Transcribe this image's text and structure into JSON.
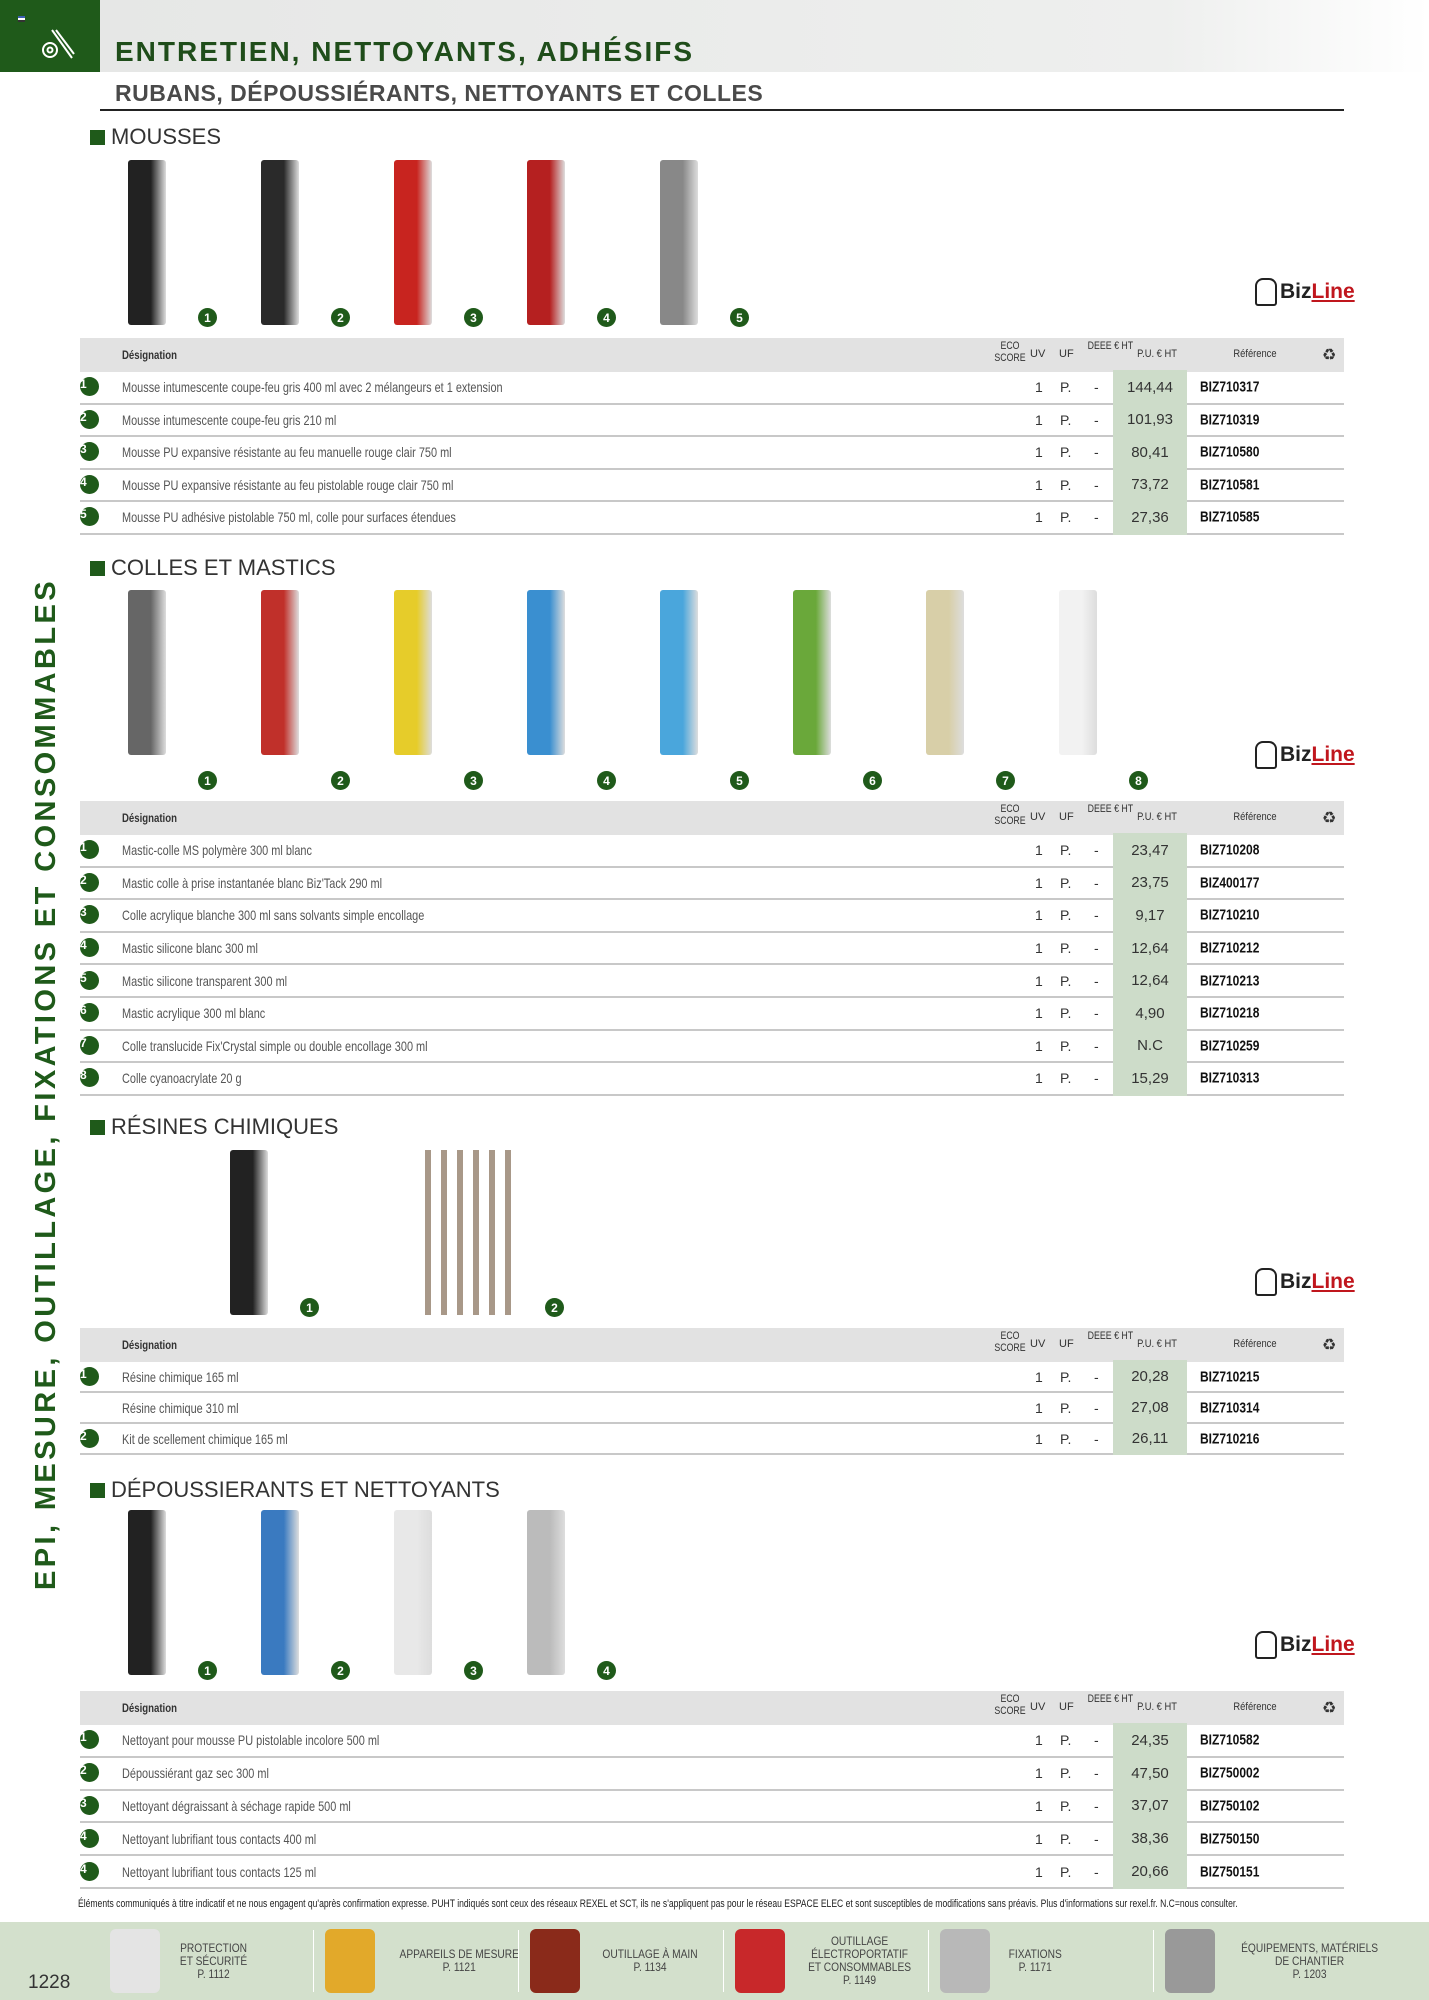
{
  "header": {
    "title": "ENTRETIEN, NETTOYANTS, ADHÉSIFS",
    "subtitle": "RUBANS, DÉPOUSSIÉRANTS, NETTOYANTS ET COLLES",
    "side_label": "EPI, MESURE, OUTILLAGE, FIXATIONS ET CONSOMMABLES",
    "icon": "tool-icon"
  },
  "colors": {
    "brand_green": "#1f5a1a",
    "price_bg": "#cddcc9",
    "header_bg": "#e2e2e2",
    "footer_bg": "#d3e0cc",
    "bizline_red": "#c0161d"
  },
  "brand": {
    "biz": "Biz",
    "line": "Line"
  },
  "table_header": {
    "designation": "Désignation",
    "eco": "ECO SCORE",
    "uv": "UV",
    "uf": "UF",
    "deee": "DEEE € HT",
    "pu": "P.U. € HT",
    "ref": "Référence",
    "recycle_icon": "recycle-icon"
  },
  "sections": [
    {
      "title": "MOUSSES",
      "product_colors": [
        "#222",
        "#2a2a2a",
        "#c8241f",
        "#b52020",
        "#888"
      ],
      "rows": [
        {
          "n": "1",
          "des": "Mousse intumescente coupe-feu gris 400 ml avec 2 mélangeurs et 1 extension",
          "uv": "1",
          "uf": "P.",
          "deee": "-",
          "pu": "144,44",
          "ref": "BIZ710317"
        },
        {
          "n": "2",
          "des": "Mousse intumescente coupe-feu gris 210 ml",
          "uv": "1",
          "uf": "P.",
          "deee": "-",
          "pu": "101,93",
          "ref": "BIZ710319"
        },
        {
          "n": "3",
          "des": "Mousse PU expansive résistante au feu manuelle rouge clair 750 ml",
          "uv": "1",
          "uf": "P.",
          "deee": "-",
          "pu": "80,41",
          "ref": "BIZ710580"
        },
        {
          "n": "4",
          "des": "Mousse PU expansive résistante au feu pistolable rouge clair 750 ml",
          "uv": "1",
          "uf": "P.",
          "deee": "-",
          "pu": "73,72",
          "ref": "BIZ710581"
        },
        {
          "n": "5",
          "des": "Mousse PU adhésive pistolable 750 ml, colle pour surfaces étendues",
          "uv": "1",
          "uf": "P.",
          "deee": "-",
          "pu": "27,36",
          "ref": "BIZ710585"
        }
      ]
    },
    {
      "title": "COLLES ET MASTICS",
      "product_colors": [
        "#666",
        "#c0302a",
        "#e6cc2a",
        "#3a8fd0",
        "#4aa6dc",
        "#6aa83a",
        "#d8cfa8",
        "#f2f2f2"
      ],
      "rows": [
        {
          "n": "1",
          "des": "Mastic-colle MS polymère 300 ml blanc",
          "uv": "1",
          "uf": "P.",
          "deee": "-",
          "pu": "23,47",
          "ref": "BIZ710208"
        },
        {
          "n": "2",
          "des": "Mastic colle à prise instantanée blanc Biz'Tack 290 ml",
          "uv": "1",
          "uf": "P.",
          "deee": "-",
          "pu": "23,75",
          "ref": "BIZ400177"
        },
        {
          "n": "3",
          "des": "Colle acrylique blanche 300 ml sans solvants simple encollage",
          "uv": "1",
          "uf": "P.",
          "deee": "-",
          "pu": "9,17",
          "ref": "BIZ710210"
        },
        {
          "n": "4",
          "des": "Mastic silicone blanc 300 ml",
          "uv": "1",
          "uf": "P.",
          "deee": "-",
          "pu": "12,64",
          "ref": "BIZ710212"
        },
        {
          "n": "5",
          "des": "Mastic silicone transparent 300 ml",
          "uv": "1",
          "uf": "P.",
          "deee": "-",
          "pu": "12,64",
          "ref": "BIZ710213"
        },
        {
          "n": "6",
          "des": "Mastic acrylique 300 ml blanc",
          "uv": "1",
          "uf": "P.",
          "deee": "-",
          "pu": "4,90",
          "ref": "BIZ710218"
        },
        {
          "n": "7",
          "des": "Colle translucide Fix'Crystal simple ou double encollage 300 ml",
          "uv": "1",
          "uf": "P.",
          "deee": "-",
          "pu": "N.C",
          "ref": "BIZ710259"
        },
        {
          "n": "8",
          "des": "Colle cyanoacrylate 20 g",
          "uv": "1",
          "uf": "P.",
          "deee": "-",
          "pu": "15,29",
          "ref": "BIZ710313"
        }
      ]
    },
    {
      "title": "RÉSINES CHIMIQUES",
      "product_colors": [
        "#222",
        "#a89888"
      ],
      "rows": [
        {
          "n": "1",
          "des": "Résine chimique 165 ml",
          "uv": "1",
          "uf": "P.",
          "deee": "-",
          "pu": "20,28",
          "ref": "BIZ710215"
        },
        {
          "n": "",
          "des": "Résine chimique 310 ml",
          "uv": "1",
          "uf": "P.",
          "deee": "-",
          "pu": "27,08",
          "ref": "BIZ710314"
        },
        {
          "n": "2",
          "des": "Kit de scellement chimique 165 ml",
          "uv": "1",
          "uf": "P.",
          "deee": "-",
          "pu": "26,11",
          "ref": "BIZ710216"
        }
      ]
    },
    {
      "title": "DÉPOUSSIERANTS ET NETTOYANTS",
      "product_colors": [
        "#222",
        "#3a7ac0",
        "#e8e8e8",
        "#bbb"
      ],
      "rows": [
        {
          "n": "1",
          "des": "Nettoyant pour mousse PU pistolable incolore 500 ml",
          "uv": "1",
          "uf": "P.",
          "deee": "-",
          "pu": "24,35",
          "ref": "BIZ710582"
        },
        {
          "n": "2",
          "des": "Dépoussiérant gaz sec 300 ml",
          "uv": "1",
          "uf": "P.",
          "deee": "-",
          "pu": "47,50",
          "ref": "BIZ750002"
        },
        {
          "n": "3",
          "des": "Nettoyant dégraissant à séchage rapide 500 ml",
          "uv": "1",
          "uf": "P.",
          "deee": "-",
          "pu": "37,07",
          "ref": "BIZ750102"
        },
        {
          "n": "4",
          "des": "Nettoyant lubrifiant tous contacts 400 ml",
          "uv": "1",
          "uf": "P.",
          "deee": "-",
          "pu": "38,36",
          "ref": "BIZ750150"
        },
        {
          "n": "4",
          "des": "Nettoyant lubrifiant tous contacts 125 ml",
          "uv": "1",
          "uf": "P.",
          "deee": "-",
          "pu": "20,66",
          "ref": "BIZ750151"
        }
      ]
    }
  ],
  "footnote": "Éléments communiqués à titre indicatif et ne nous engagent qu'après confirmation expresse. PUHT indiqués sont ceux des réseaux REXEL et SCT, ils ne s'appliquent pas pour le réseau ESPACE ELEC et sont susceptibles de modifications sans préavis. Plus d'informations sur rexel.fr. N.C=nous consulter.",
  "footer": {
    "page_number": "1228",
    "items": [
      {
        "label": "PROTECTION\nET SÉCURITÉ\nP. 1112",
        "color": "#e4e4e4"
      },
      {
        "label": "APPAREILS DE MESURE\nP. 1121",
        "color": "#e2a92a"
      },
      {
        "label": "OUTILLAGE À MAIN\nP. 1134",
        "color": "#8a2a1a"
      },
      {
        "label": "OUTILLAGE\nÉLECTROPORTATIF\nET CONSOMMABLES\nP. 1149",
        "color": "#c8282a"
      },
      {
        "label": "FIXATIONS\nP. 1171",
        "color": "#b8b8b8"
      },
      {
        "label": "ÉQUIPEMENTS, MATÉRIELS\nDE CHANTIER\nP. 1203",
        "color": "#999"
      }
    ]
  }
}
